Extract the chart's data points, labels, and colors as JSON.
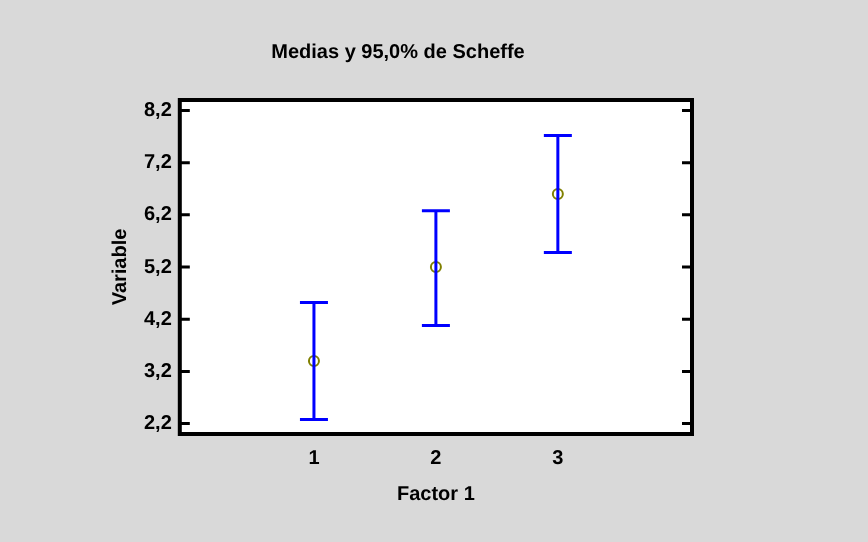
{
  "chart_data": {
    "type": "scatter",
    "title": "Medias y 95,0% de Scheffe",
    "xlabel": "Factor 1",
    "ylabel": "Variable",
    "x": [
      1,
      2,
      3
    ],
    "series": [
      {
        "color": "#808000",
        "values": [
          3.4,
          5.2,
          6.6
        ],
        "errors": [
          [
            2.28,
            4.52
          ],
          [
            4.08,
            6.28
          ],
          [
            5.48,
            7.72
          ]
        ]
      }
    ],
    "xlim": [
      -0.1,
      4.1
    ],
    "xticks": [
      1,
      2,
      3
    ],
    "ylim": [
      2.0,
      8.4
    ],
    "yticks": [
      {
        "value": 2.2,
        "label": "2,2"
      },
      {
        "value": 3.2,
        "label": "3,2"
      },
      {
        "value": 4.2,
        "label": "4,2"
      },
      {
        "value": 5.2,
        "label": "5,2"
      },
      {
        "value": 6.2,
        "label": "6,2"
      },
      {
        "value": 7.2,
        "label": "7,2"
      },
      {
        "value": 8.2,
        "label": "8,2"
      }
    ],
    "grid": false,
    "legend": false,
    "marker": "circle"
  }
}
